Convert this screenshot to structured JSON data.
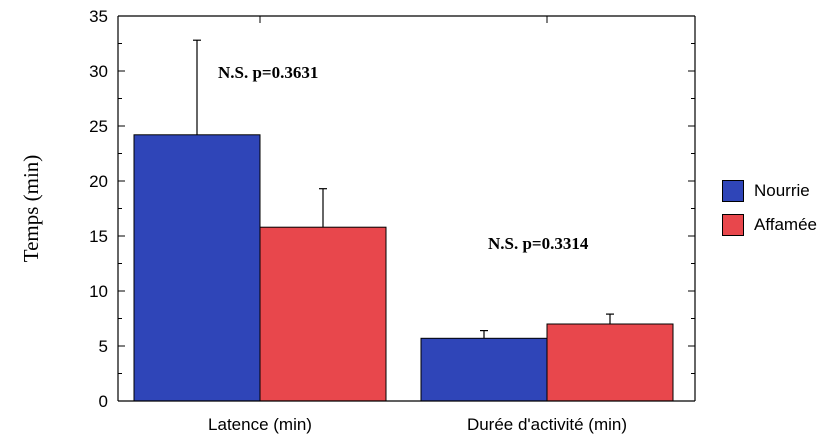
{
  "chart_data": {
    "type": "bar",
    "title": "",
    "xlabel": "",
    "ylabel": "Temps (min)",
    "ylim": [
      0,
      35
    ],
    "yticks": [
      0,
      5,
      10,
      15,
      20,
      25,
      30,
      35
    ],
    "categories": [
      "Latence (min)",
      "Durée d'activité (min)"
    ],
    "series": [
      {
        "name": "Nourrie",
        "color": "#2f45b8",
        "values": [
          24.2,
          5.7
        ],
        "errors": [
          8.6,
          0.7
        ]
      },
      {
        "name": "Affamée",
        "color": "#e8474c",
        "values": [
          15.8,
          7.0
        ],
        "errors": [
          3.5,
          0.9
        ]
      }
    ],
    "annotations": [
      {
        "text": "N.S. p=0.3631",
        "category": 0
      },
      {
        "text": "N.S. p=0.3314",
        "category": 1
      }
    ],
    "legend_position": "right",
    "grid": false
  }
}
